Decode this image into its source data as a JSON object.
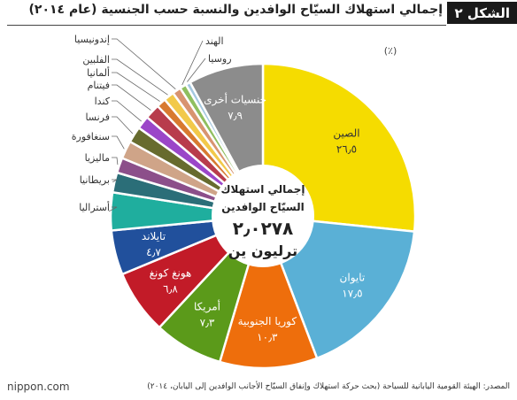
{
  "header": {
    "figure_label": "الشكل ٢",
    "title": "إجمالي استهلاك السيّاح الوافدين والنسبة حسب الجنسية (عام ٢٠١٤)"
  },
  "chart_data": {
    "type": "pie",
    "unit_label": "(٪)",
    "center_text": {
      "line1": "إجمالي استهلاك",
      "line2": "السيّاح الوافدين",
      "value": "٢٫٠٢٧٨",
      "unit": "ترليون ين"
    },
    "slices": [
      {
        "name": "الصين",
        "value": 26.5,
        "value_label": "٢٦٫٥",
        "color": "#f5dc00",
        "label_inside": true,
        "text_color": "#333333"
      },
      {
        "name": "تايوان",
        "value": 17.5,
        "value_label": "١٧٫٥",
        "color": "#5ab0d6",
        "label_inside": true,
        "text_color": "#ffffff"
      },
      {
        "name": "كوريا الجنوبية",
        "value": 10.3,
        "value_label": "١٠٫٣",
        "color": "#ee6e0c",
        "label_inside": true,
        "text_color": "#ffffff"
      },
      {
        "name": "أمريكا",
        "value": 7.3,
        "value_label": "٧٫٣",
        "color": "#5b9a1a",
        "label_inside": true,
        "text_color": "#ffffff"
      },
      {
        "name": "هونغ كونغ",
        "value": 6.8,
        "value_label": "٦٫٨",
        "color": "#c21b28",
        "label_inside": true,
        "text_color": "#ffffff"
      },
      {
        "name": "تايلاند",
        "value": 4.7,
        "value_label": "٤٫٧",
        "color": "#21509c",
        "label_inside": true,
        "text_color": "#ffffff"
      },
      {
        "name": "أستراليا",
        "value": 4.0,
        "color": "#1fae9e",
        "label_inside": false
      },
      {
        "name": "بريطانيا",
        "value": 2.1,
        "color": "#2b6e78",
        "label_inside": false
      },
      {
        "name": "ماليزيا",
        "value": 1.6,
        "color": "#8c4f8a",
        "label_inside": false
      },
      {
        "name": "سنغافورة",
        "value": 1.9,
        "color": "#cfa488",
        "label_inside": false
      },
      {
        "name": "فرنسا",
        "value": 1.7,
        "color": "#676b2e",
        "label_inside": false
      },
      {
        "name": "كندا",
        "value": 1.4,
        "color": "#9b46c8",
        "label_inside": false
      },
      {
        "name": "فيتنام",
        "value": 1.6,
        "color": "#b83c4c",
        "label_inside": false
      },
      {
        "name": "ألمانيا",
        "value": 1.0,
        "color": "#d87a30",
        "label_inside": false
      },
      {
        "name": "الفلبين",
        "value": 1.1,
        "color": "#f2c94a",
        "label_inside": false
      },
      {
        "name": "إندونيسيا",
        "value": 0.9,
        "color": "#d89470",
        "label_inside": false
      },
      {
        "name": "الهند",
        "value": 0.7,
        "color": "#8fbf60",
        "label_inside": false
      },
      {
        "name": "روسيا",
        "value": 0.5,
        "color": "#a4c8e0",
        "label_inside": false
      },
      {
        "name": "جنسيات أخرى",
        "value": 7.9,
        "value_label": "٧٫٩",
        "color": "#8c8c8c",
        "label_inside": true,
        "text_color": "#ffffff"
      }
    ]
  },
  "footer": {
    "logo": "nippon.com",
    "source": "المصدر: الهيئة القومية اليابانية للسياحة (بحث حركة استهلاك وإنفاق السيّاح الأجانب الوافدين إلى اليابان، ٢٠١٤)"
  }
}
